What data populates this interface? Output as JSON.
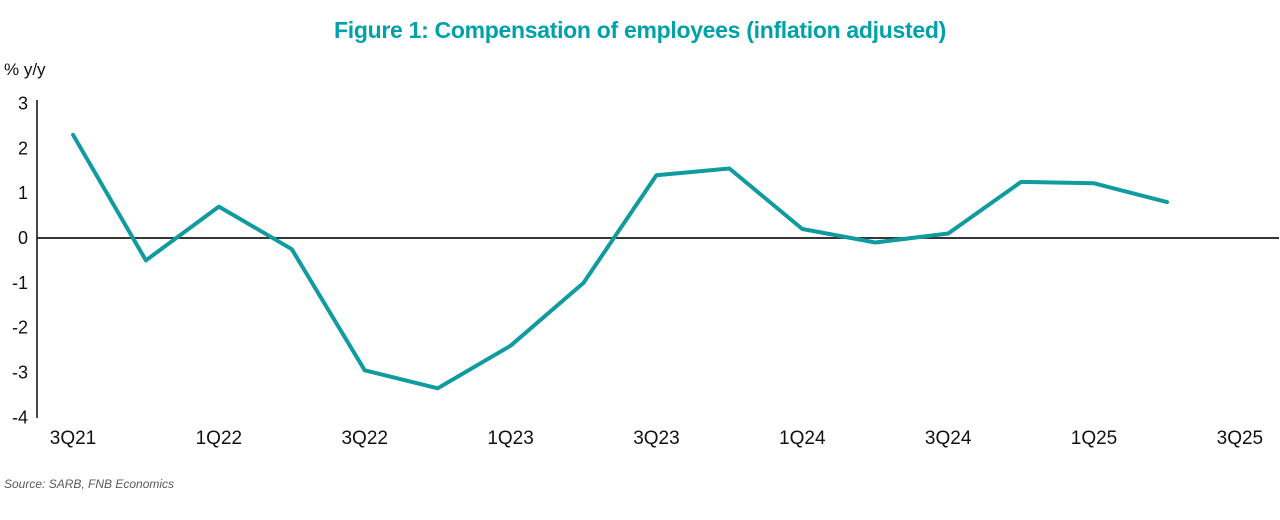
{
  "figure": {
    "source": "Source: SARB, FNB Economics"
  },
  "colors": {
    "title_teal": "#00a1a8",
    "line_teal": "#0f9b9f",
    "axis_black": "#1a1a1a",
    "tick_text": "#111111",
    "source_gray": "#595959"
  },
  "chart_data": {
    "type": "line",
    "title": "Figure 1: Compensation of employees (inflation adjusted)",
    "ylabel": "% y/y",
    "xlabel": "",
    "x": [
      "3Q21",
      "4Q21",
      "1Q22",
      "2Q22",
      "3Q22",
      "4Q22",
      "1Q23",
      "2Q23",
      "3Q23",
      "4Q23",
      "1Q24",
      "2Q24",
      "3Q24",
      "4Q24",
      "1Q25",
      "2Q25"
    ],
    "values": [
      2.3,
      -0.5,
      0.7,
      -0.25,
      -2.95,
      -3.35,
      -2.4,
      -1.0,
      1.4,
      1.55,
      0.2,
      -0.1,
      0.1,
      1.25,
      1.22,
      0.8
    ],
    "x_tick_labels": [
      "3Q21",
      "1Q22",
      "3Q22",
      "1Q23",
      "3Q23",
      "1Q24",
      "3Q24",
      "1Q25",
      "3Q25"
    ],
    "y_ticks": [
      3,
      2,
      1,
      0,
      -1,
      -2,
      -3,
      -4
    ],
    "ylim": [
      -4,
      3
    ],
    "grid": false,
    "legend": false
  }
}
